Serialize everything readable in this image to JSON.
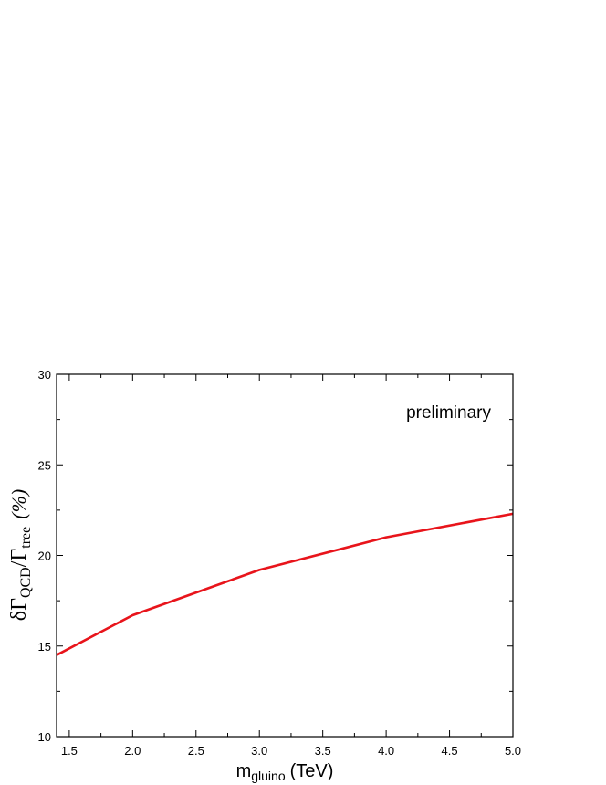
{
  "chart_data": {
    "type": "line",
    "title": "",
    "xlabel": {
      "main": "m",
      "sub": "gluino",
      "unit": "(TeV)"
    },
    "ylabel": {
      "delta": "δΓ",
      "sub1": "QCD",
      "slash": "/Γ",
      "sub2": "tree",
      "unit": "(%)"
    },
    "xlim": [
      1.4,
      5.0
    ],
    "ylim": [
      10,
      30
    ],
    "x_ticks": [
      "1.5",
      "2.0",
      "2.5",
      "3.0",
      "3.5",
      "4.0",
      "4.5",
      "5.0"
    ],
    "y_ticks": [
      "10",
      "15",
      "20",
      "25",
      "30"
    ],
    "annotation": "preliminary",
    "grid": false,
    "series": [
      {
        "color": "#e8141b",
        "x": [
          1.4,
          2.0,
          3.0,
          4.0,
          5.0
        ],
        "y": [
          14.5,
          16.7,
          19.2,
          21.0,
          22.3
        ]
      }
    ]
  }
}
